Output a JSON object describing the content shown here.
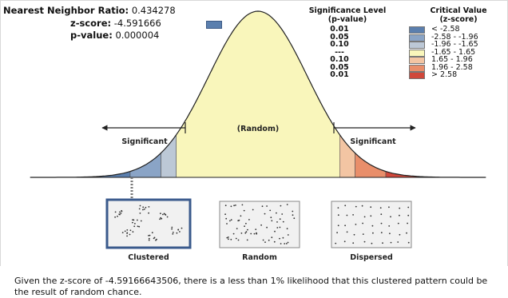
{
  "stats": {
    "nnr_label": "Nearest Neighbor Ratio:",
    "nnr_value": "0.434278",
    "z_label": "z-score:",
    "z_value": "-4.591666",
    "p_label": "p-value:",
    "p_value": "0.000004"
  },
  "legend": {
    "sig_header_line1": "Significance Level",
    "sig_header_line2": "(p-value)",
    "crit_header_line1": "Critical Value",
    "crit_header_line2": "(z-score)",
    "rows": [
      {
        "p": "0.01",
        "z": "< -2.58",
        "color": "#5b7fae"
      },
      {
        "p": "0.05",
        "z": "-2.58 - -1.96",
        "color": "#8aa4c6"
      },
      {
        "p": "0.10",
        "z": "-1.96 - -1.65",
        "color": "#bcc8d6"
      },
      {
        "p": "---",
        "z": "-1.65 - 1.65",
        "color": "#f9f6bb"
      },
      {
        "p": "0.10",
        "z": "1.65 - 1.96",
        "color": "#f3c5a3"
      },
      {
        "p": "0.05",
        "z": "1.96 - 2.58",
        "color": "#e98e6a"
      },
      {
        "p": "0.01",
        "z": "> 2.58",
        "color": "#d0473a"
      }
    ]
  },
  "curve": {
    "center_label": "(Random)",
    "left_label": "Significant",
    "right_label": "Significant"
  },
  "patterns": {
    "clustered": "Clustered",
    "random": "Random",
    "dispersed": "Dispersed"
  },
  "footer": {
    "text": "Given the z-score of -4.59166643506, there is a less than 1% likelihood that this clustered pattern could be the result of random chance."
  }
}
